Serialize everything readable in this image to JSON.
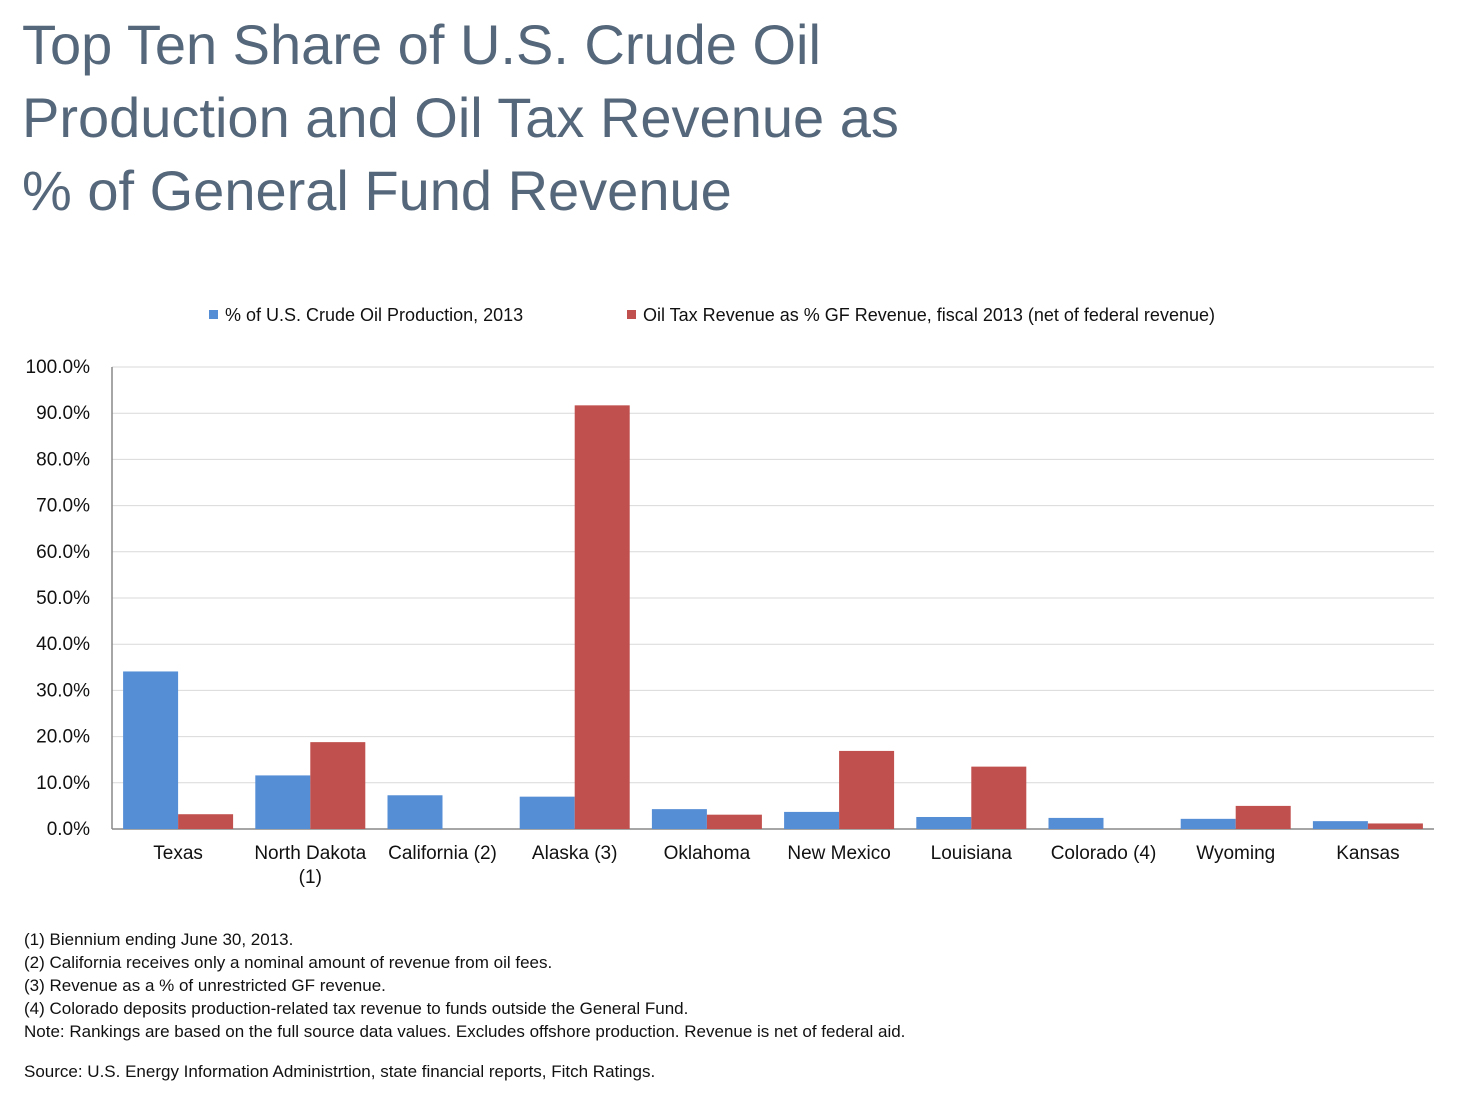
{
  "title_lines": [
    "Top Ten Share of U.S. Crude Oil",
    "Production and Oil Tax Revenue as",
    "% of General Fund Revenue"
  ],
  "chart_data": {
    "type": "bar",
    "title": "Top Ten Share of U.S. Crude Oil Production and Oil Tax Revenue as % of General Fund Revenue",
    "categories": [
      [
        "Texas"
      ],
      [
        "North Dakota",
        "(1)"
      ],
      [
        "California (2)"
      ],
      [
        "Alaska (3)"
      ],
      [
        "Oklahoma"
      ],
      [
        "New Mexico"
      ],
      [
        "Louisiana"
      ],
      [
        "Colorado (4)"
      ],
      [
        "Wyoming"
      ],
      [
        "Kansas"
      ]
    ],
    "series": [
      {
        "name": "% of U.S. Crude Oil Production, 2013",
        "color": "#558ed5",
        "values": [
          34.1,
          11.6,
          7.3,
          7.0,
          4.3,
          3.7,
          2.6,
          2.4,
          2.2,
          1.7
        ]
      },
      {
        "name": "Oil Tax Revenue as % GF Revenue, fiscal 2013 (net of federal revenue)",
        "color": "#c0504d",
        "values": [
          3.2,
          18.8,
          0.0,
          91.7,
          3.1,
          16.9,
          13.5,
          0.0,
          5.0,
          1.2
        ]
      }
    ],
    "ylim": [
      0,
      100
    ],
    "yticks": [
      "0.0%",
      "10.0%",
      "20.0%",
      "30.0%",
      "40.0%",
      "50.0%",
      "60.0%",
      "70.0%",
      "80.0%",
      "90.0%",
      "100.0%"
    ],
    "grid": true,
    "legend": "top"
  },
  "notes": [
    "(1) Biennium ending June 30, 2013.",
    "(2) California receives only a nominal amount of revenue from oil fees.",
    "(3) Revenue as a % of unrestricted GF revenue.",
    "(4) Colorado deposits production-related tax revenue to funds outside the General Fund.",
    "Note: Rankings are based on the full source data values. Excludes offshore production. Revenue is net of federal aid."
  ],
  "source": "Source: U.S. Energy Information Administrtion, state financial reports, Fitch Ratings."
}
